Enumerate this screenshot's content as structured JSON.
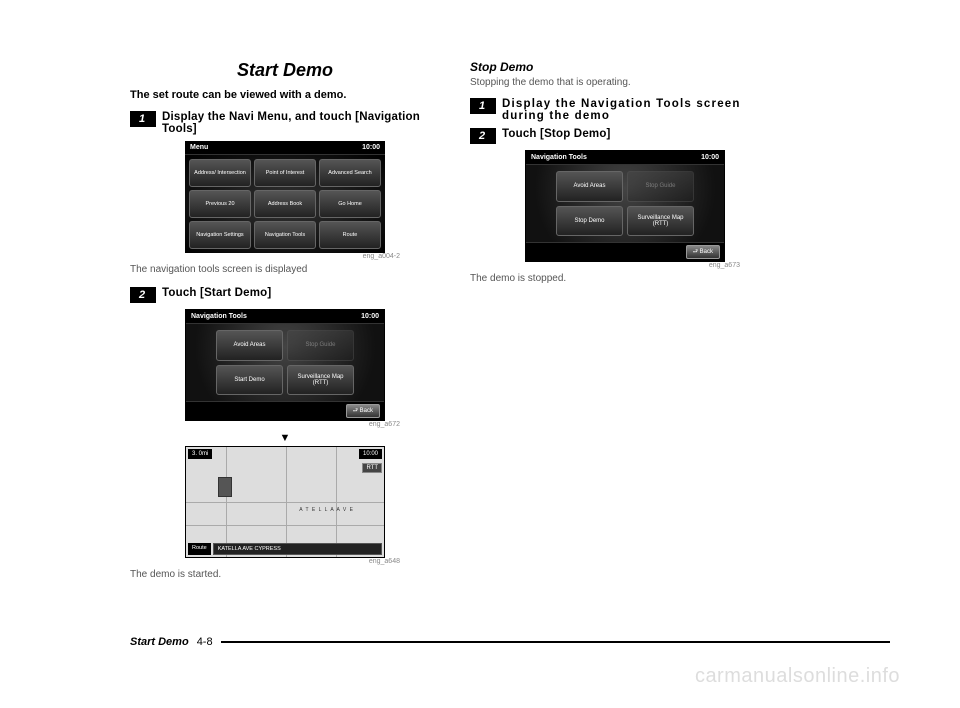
{
  "page": {
    "footer_title": "Start Demo",
    "footer_page": "4-8",
    "watermark": "carmanualsonline.info"
  },
  "left": {
    "heading": "Start Demo",
    "intro": "The set route can be viewed with a demo.",
    "step1_num": "1",
    "step1_text": "Display the Navi Menu, and touch [Navigation Tools]",
    "shot1_label": "eng_a004-2",
    "shot1_caption": "The navigation tools screen is displayed",
    "step2_num": "2",
    "step2_text": "Touch [Start Demo]",
    "shot2_label": "eng_a672",
    "shot3_label": "eng_a648",
    "shot3_caption": "The demo is started.",
    "menu": {
      "title": "Menu",
      "time": "10:00",
      "btns": [
        "Address/\nIntersection",
        "Point of\nInterest",
        "Advanced\nSearch",
        "Previous\n20",
        "Address\nBook",
        "Go Home",
        "Navigation\nSettings",
        "Navigation\nTools",
        "Route"
      ]
    },
    "navtools": {
      "title": "Navigation Tools",
      "time": "10:00",
      "b1": "Avoid\nAreas",
      "b2": "Stop\nGuide",
      "b3": "Start\nDemo",
      "b4": "Surveillance\nMap (RTT)",
      "back": "⮐ Back"
    },
    "map": {
      "dist": "3. 0mi",
      "time": "10:00",
      "rtt": "RTT",
      "street": "A T E L L A  A V E",
      "route": "Route",
      "addr": "KATELLA AVE CYPRESS"
    }
  },
  "right": {
    "subheading": "Stop Demo",
    "subdesc": "Stopping the demo that is operating.",
    "step1_num": "1",
    "step1_text": "Display the Navigation Tools screen during the demo",
    "step2_num": "2",
    "step2_text": "Touch [Stop Demo]",
    "shot_label": "eng_a673",
    "shot_caption": "The demo is stopped.",
    "navtools": {
      "title": "Navigation Tools",
      "time": "10:00",
      "b1": "Avoid\nAreas",
      "b2": "Stop\nGuide",
      "b3": "Stop\nDemo",
      "b4": "Surveillance\nMap (RTT)",
      "back": "⮐ Back"
    }
  }
}
